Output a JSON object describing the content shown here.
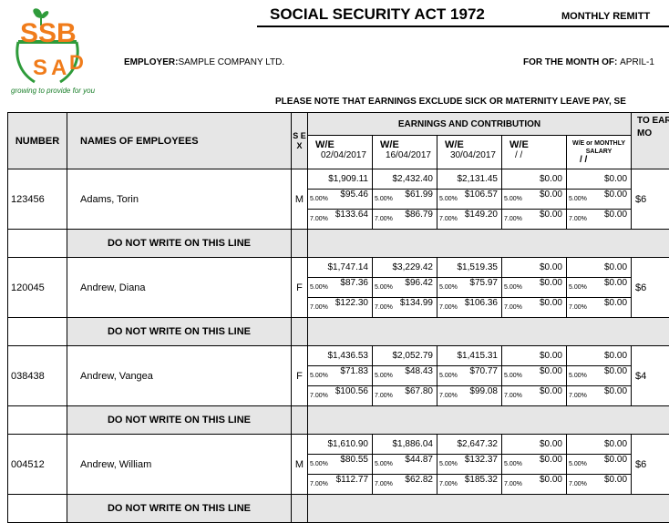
{
  "logo": {
    "letters": "SSB",
    "tagline": "growing to provide for you"
  },
  "header": {
    "title": "SOCIAL SECURITY ACT 1972",
    "monthly": "MONTHLY REMITT",
    "employer_label": "EMPLOYER:",
    "employer_value": "SAMPLE COMPANY LTD.",
    "month_label": "FOR THE MONTH OF:",
    "month_value": "APRIL-1",
    "note": "PLEASE NOTE THAT EARNINGS EXCLUDE SICK OR MATERNITY LEAVE PAY, SE"
  },
  "table": {
    "col_number": "NUMBER",
    "col_names": "NAMES OF EMPLOYEES",
    "col_sex": "S E X",
    "earnings_title": "EARNINGS AND CONTRIBUTION",
    "we_label": "W/E",
    "we_dates": [
      "02/04/2017",
      "16/04/2017",
      "30/04/2017",
      "/ /"
    ],
    "we_monthly_label": "W/E or MONTHLY SALARY",
    "we_monthly_date": "/ /",
    "total_header": "TO EAR F MO",
    "do_not_write": "DO NOT WRITE ON THIS LINE",
    "rate1": "5.00%",
    "rate2": "7.00%",
    "employees": [
      {
        "number": "123456",
        "name": "Adams, Torin",
        "sex": "M",
        "earnings": [
          "$1,909.11",
          "$2,432.40",
          "$2,131.45",
          "$0.00",
          "$0.00"
        ],
        "contrib5": [
          "$95.46",
          "$61.99",
          "$106.57",
          "$0.00",
          "$0.00"
        ],
        "contrib7": [
          "$133.64",
          "$86.79",
          "$149.20",
          "$0.00",
          "$0.00"
        ],
        "total": "$6"
      },
      {
        "number": "120045",
        "name": "Andrew, Diana",
        "sex": "F",
        "earnings": [
          "$1,747.14",
          "$3,229.42",
          "$1,519.35",
          "$0.00",
          "$0.00"
        ],
        "contrib5": [
          "$87.36",
          "$96.42",
          "$75.97",
          "$0.00",
          "$0.00"
        ],
        "contrib7": [
          "$122.30",
          "$134.99",
          "$106.36",
          "$0.00",
          "$0.00"
        ],
        "total": "$6"
      },
      {
        "number": "038438",
        "name": "Andrew, Vangea",
        "sex": "F",
        "earnings": [
          "$1,436.53",
          "$2,052.79",
          "$1,415.31",
          "$0.00",
          "$0.00"
        ],
        "contrib5": [
          "$71.83",
          "$48.43",
          "$70.77",
          "$0.00",
          "$0.00"
        ],
        "contrib7": [
          "$100.56",
          "$67.80",
          "$99.08",
          "$0.00",
          "$0.00"
        ],
        "total": "$4"
      },
      {
        "number": "004512",
        "name": "Andrew, William",
        "sex": "M",
        "earnings": [
          "$1,610.90",
          "$1,886.04",
          "$2,647.32",
          "$0.00",
          "$0.00"
        ],
        "contrib5": [
          "$80.55",
          "$44.87",
          "$132.37",
          "$0.00",
          "$0.00"
        ],
        "contrib7": [
          "$112.77",
          "$62.82",
          "$185.32",
          "$0.00",
          "$0.00"
        ],
        "total": "$6"
      }
    ]
  },
  "colors": {
    "logo_orange": "#f07c1b",
    "logo_green": "#2e9b3a",
    "header_gray": "#e6e6e6"
  }
}
